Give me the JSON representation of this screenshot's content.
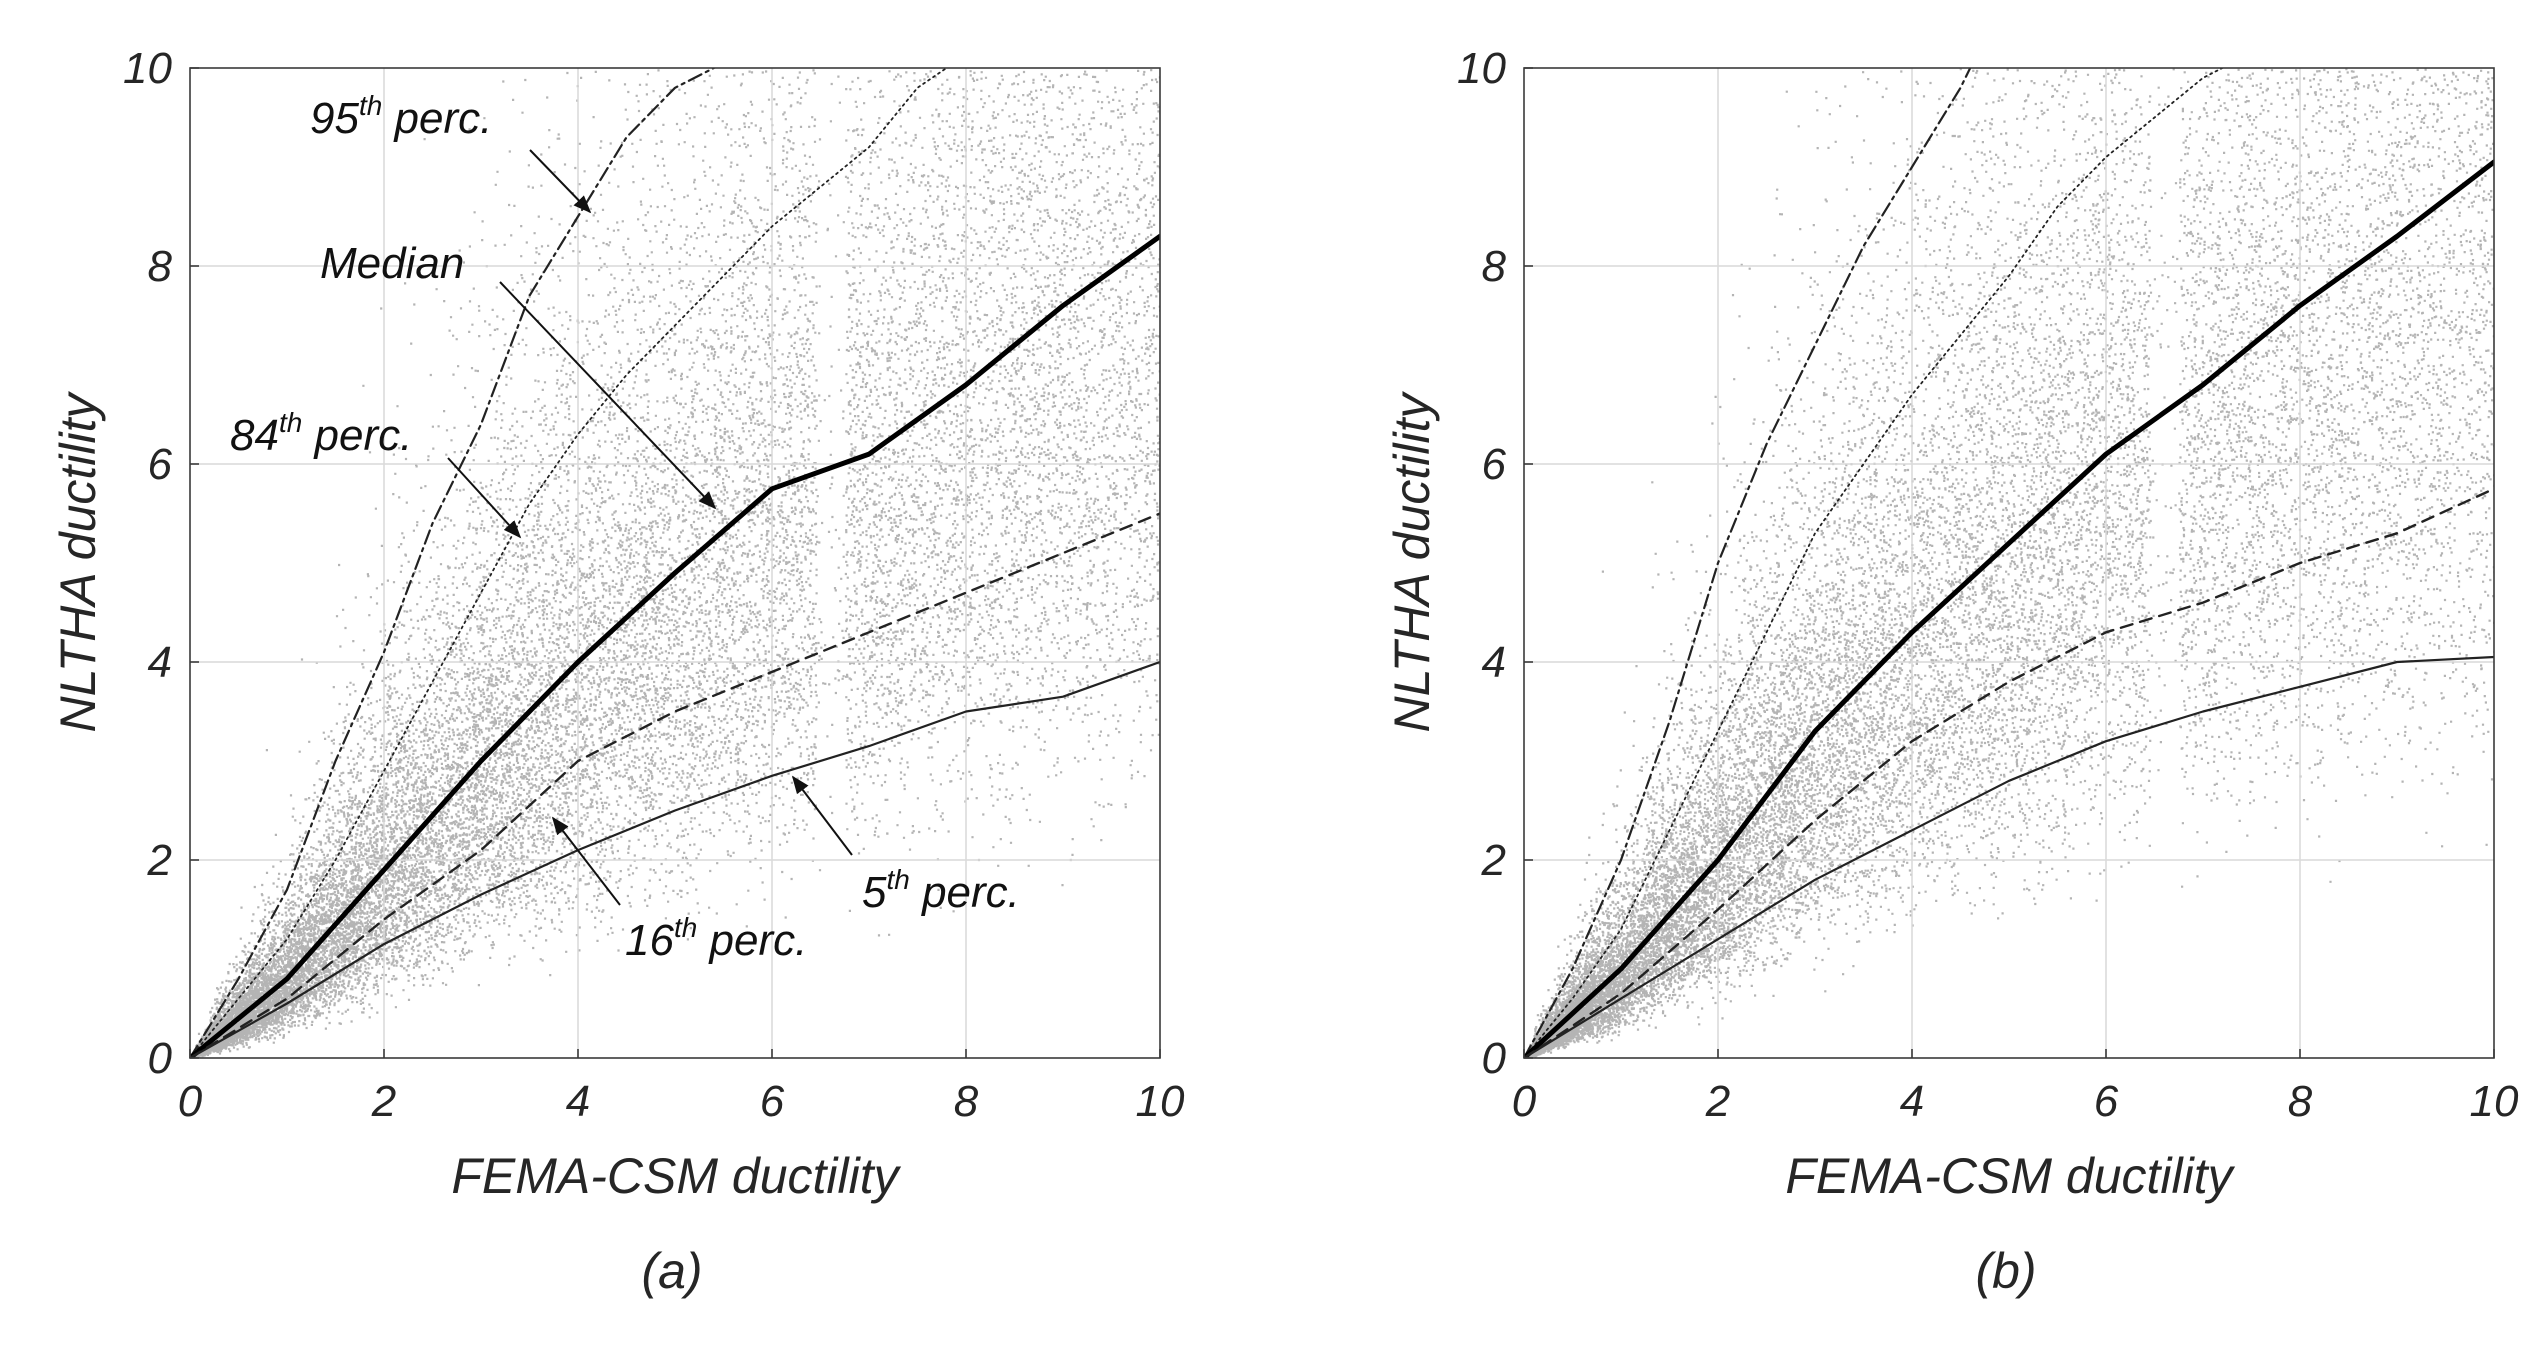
{
  "colors": {
    "scatter": "#b4b4b4",
    "grid": "#d9d9d9",
    "axes": "#3a3a3a",
    "median": "#000000",
    "percentile_lines": "#222222",
    "text": "#262626"
  },
  "chart_data": [
    {
      "type": "scatter",
      "panel_label": "(a)",
      "xlabel": "FEMA-CSM ductility",
      "ylabel": "NLTHA ductility",
      "xlim": [
        0,
        10
      ],
      "ylim": [
        0,
        10
      ],
      "xticks": [
        "0",
        "2",
        "4",
        "6",
        "8",
        "10"
      ],
      "yticks": [
        "0",
        "2",
        "4",
        "6",
        "8",
        "10"
      ],
      "grid": true,
      "series": [
        {
          "key": "p95",
          "name": "95th perc.",
          "style": "dash-dot",
          "x": [
            0,
            0.5,
            1,
            1.5,
            2,
            2.5,
            3,
            3.5,
            4,
            4.5,
            5,
            5.4
          ],
          "y": [
            0,
            0.8,
            1.7,
            3.0,
            4.1,
            5.4,
            6.4,
            7.7,
            8.5,
            9.3,
            9.8,
            10
          ]
        },
        {
          "key": "p84",
          "name": "84th perc.",
          "style": "dotted",
          "x": [
            0,
            0.5,
            1,
            1.5,
            2,
            2.5,
            3,
            3.5,
            4,
            4.5,
            5,
            5.5,
            6,
            6.5,
            7,
            7.5,
            7.8
          ],
          "y": [
            0,
            0.6,
            1.2,
            2.0,
            2.9,
            3.8,
            4.7,
            5.6,
            6.3,
            6.9,
            7.4,
            7.9,
            8.4,
            8.8,
            9.2,
            9.8,
            10
          ]
        },
        {
          "key": "median",
          "name": "Median",
          "style": "thick",
          "x": [
            0,
            1,
            2,
            3,
            4,
            5,
            6,
            7,
            8,
            9,
            10
          ],
          "y": [
            0,
            0.8,
            1.9,
            3.0,
            4.0,
            4.9,
            5.75,
            6.1,
            6.8,
            7.6,
            8.3
          ]
        },
        {
          "key": "p16",
          "name": "16th perc.",
          "style": "dashed",
          "x": [
            0,
            1,
            2,
            3,
            4,
            5,
            6,
            7,
            8,
            9,
            10
          ],
          "y": [
            0,
            0.6,
            1.4,
            2.1,
            3.0,
            3.5,
            3.9,
            4.3,
            4.7,
            5.1,
            5.5
          ]
        },
        {
          "key": "p5",
          "name": "5th perc.",
          "style": "solid-thin",
          "x": [
            0,
            1,
            2,
            3,
            4,
            5,
            6,
            7,
            8,
            9,
            10
          ],
          "y": [
            0,
            0.55,
            1.15,
            1.65,
            2.1,
            2.5,
            2.85,
            3.15,
            3.5,
            3.65,
            4.0
          ]
        }
      ],
      "annotations": [
        {
          "key": "p95",
          "base": "95",
          "sup": "th",
          "rest": " perc."
        },
        {
          "key": "median",
          "base": "Median",
          "sup": "",
          "rest": ""
        },
        {
          "key": "p84",
          "base": "84",
          "sup": "th",
          "rest": " perc."
        },
        {
          "key": "p16",
          "base": "16",
          "sup": "th",
          "rest": " perc."
        },
        {
          "key": "p5",
          "base": "5",
          "sup": "th",
          "rest": " perc."
        }
      ]
    },
    {
      "type": "scatter",
      "panel_label": "(b)",
      "xlabel": "FEMA-CSM ductility",
      "ylabel": "NLTHA ductility",
      "xlim": [
        0,
        10
      ],
      "ylim": [
        0,
        10
      ],
      "xticks": [
        "0",
        "2",
        "4",
        "6",
        "8",
        "10"
      ],
      "yticks": [
        "0",
        "2",
        "4",
        "6",
        "8",
        "10"
      ],
      "grid": true,
      "series": [
        {
          "key": "p95",
          "style": "dash-dot",
          "x": [
            0,
            0.5,
            1,
            1.5,
            2,
            2.5,
            3,
            3.5,
            4,
            4.5,
            4.6
          ],
          "y": [
            0,
            0.9,
            2.0,
            3.4,
            5.0,
            6.2,
            7.2,
            8.2,
            9.0,
            9.8,
            10
          ]
        },
        {
          "key": "p84",
          "style": "dotted",
          "x": [
            0,
            0.5,
            1,
            1.5,
            2,
            2.5,
            3,
            3.5,
            4,
            4.5,
            5,
            5.5,
            6,
            6.5,
            7,
            7.2
          ],
          "y": [
            0,
            0.6,
            1.3,
            2.3,
            3.3,
            4.3,
            5.3,
            6.0,
            6.7,
            7.3,
            7.9,
            8.6,
            9.1,
            9.5,
            9.9,
            10
          ]
        },
        {
          "key": "median",
          "style": "thick",
          "x": [
            0,
            1,
            2,
            3,
            4,
            5,
            6,
            7,
            8,
            9,
            10
          ],
          "y": [
            0,
            0.9,
            2.0,
            3.3,
            4.3,
            5.2,
            6.1,
            6.8,
            7.6,
            8.3,
            9.05
          ]
        },
        {
          "key": "p16",
          "style": "dashed",
          "x": [
            0,
            1,
            2,
            3,
            4,
            5,
            6,
            7,
            8,
            9,
            10
          ],
          "y": [
            0,
            0.65,
            1.5,
            2.4,
            3.2,
            3.8,
            4.3,
            4.6,
            5.0,
            5.3,
            5.75
          ]
        },
        {
          "key": "p5",
          "style": "solid-thin",
          "x": [
            0,
            1,
            2,
            3,
            4,
            5,
            6,
            7,
            8,
            9,
            10
          ],
          "y": [
            0,
            0.6,
            1.2,
            1.8,
            2.3,
            2.8,
            3.2,
            3.5,
            3.75,
            4.0,
            4.05
          ]
        }
      ],
      "annotations": []
    }
  ]
}
